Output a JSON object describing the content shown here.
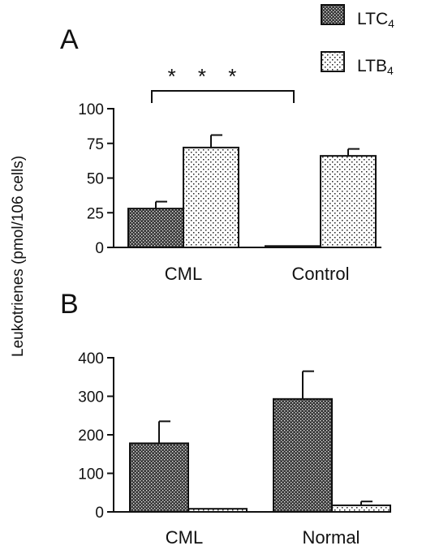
{
  "figure": {
    "shared_ylabel": "Leukotrienes  (pmol/106  cells)",
    "legend": [
      {
        "key": "ltc4",
        "name": "LTC",
        "sub": "4",
        "pattern": "dense"
      },
      {
        "key": "ltb4",
        "name": "LTB",
        "sub": "4",
        "pattern": "sparse"
      }
    ],
    "colors": {
      "ink": "#111111",
      "background": "#ffffff"
    }
  },
  "chart_data": [
    {
      "type": "bar",
      "panel": "A",
      "categories": [
        "CML",
        "Control"
      ],
      "series": [
        {
          "name": "LTC4",
          "values": [
            28,
            1
          ],
          "errors": [
            5,
            0
          ]
        },
        {
          "name": "LTB4",
          "values": [
            72,
            66
          ],
          "errors": [
            9,
            5
          ]
        }
      ],
      "ylim": [
        0,
        100
      ],
      "yticks": [
        "0",
        "25",
        "50",
        "75",
        "100"
      ],
      "significance": "* * *",
      "legend_position": "top-right",
      "grid": false
    },
    {
      "type": "bar",
      "panel": "B",
      "categories": [
        "CML",
        "Normal"
      ],
      "series": [
        {
          "name": "LTC4",
          "values": [
            178,
            293
          ],
          "errors": [
            57,
            72
          ]
        },
        {
          "name": "LTB4",
          "values": [
            8,
            17
          ],
          "errors": [
            0,
            10
          ]
        }
      ],
      "ylim": [
        0,
        400
      ],
      "yticks": [
        "0",
        "100",
        "200",
        "300",
        "400"
      ],
      "grid": false
    }
  ]
}
